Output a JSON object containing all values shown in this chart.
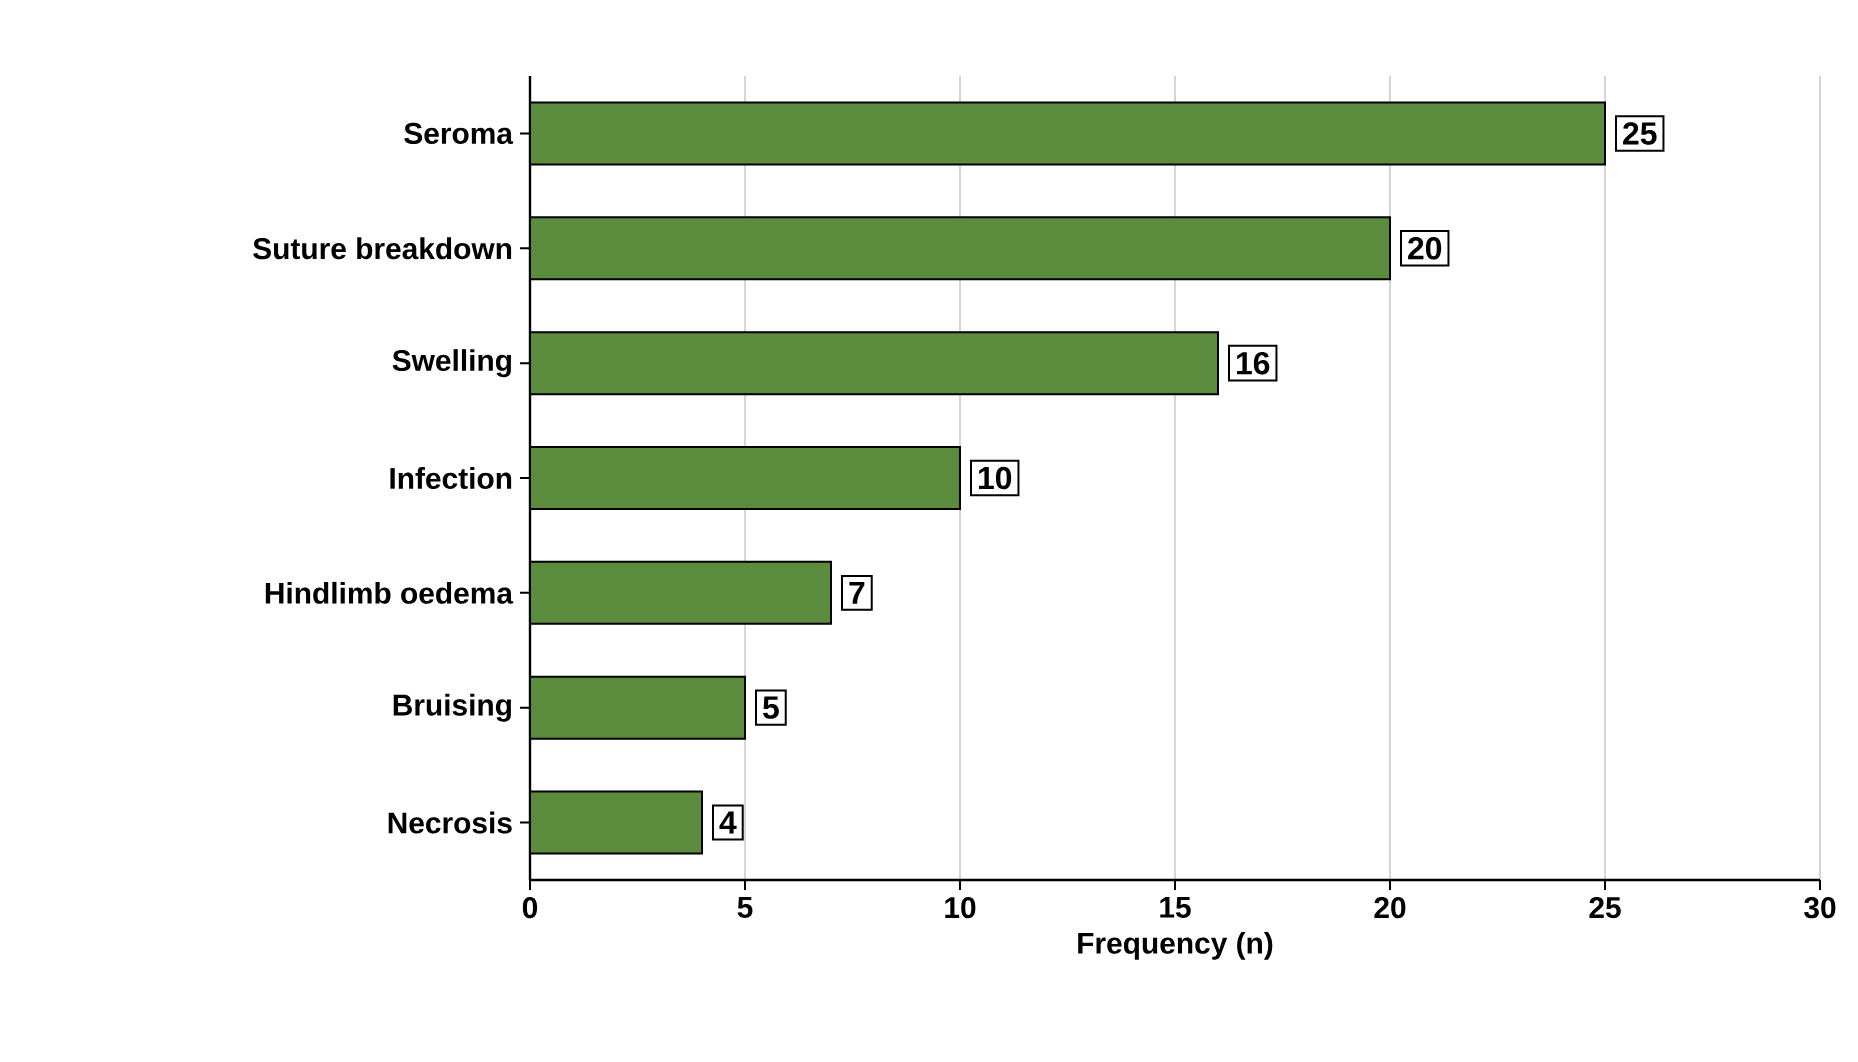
{
  "chart_data": {
    "type": "bar",
    "orientation": "horizontal",
    "xlabel": "Frequency (n)",
    "categories": [
      "Seroma",
      "Suture breakdown",
      "Swelling",
      "Infection",
      "Hindlimb oedema",
      "Bruising",
      "Necrosis"
    ],
    "values": [
      25,
      20,
      16,
      10,
      7,
      5,
      4
    ],
    "color": "#5b8c3e",
    "xlim": [
      0,
      30
    ],
    "xticks": [
      0,
      5,
      10,
      15,
      20,
      25,
      30
    ],
    "grid": "x",
    "data_labels": true
  }
}
